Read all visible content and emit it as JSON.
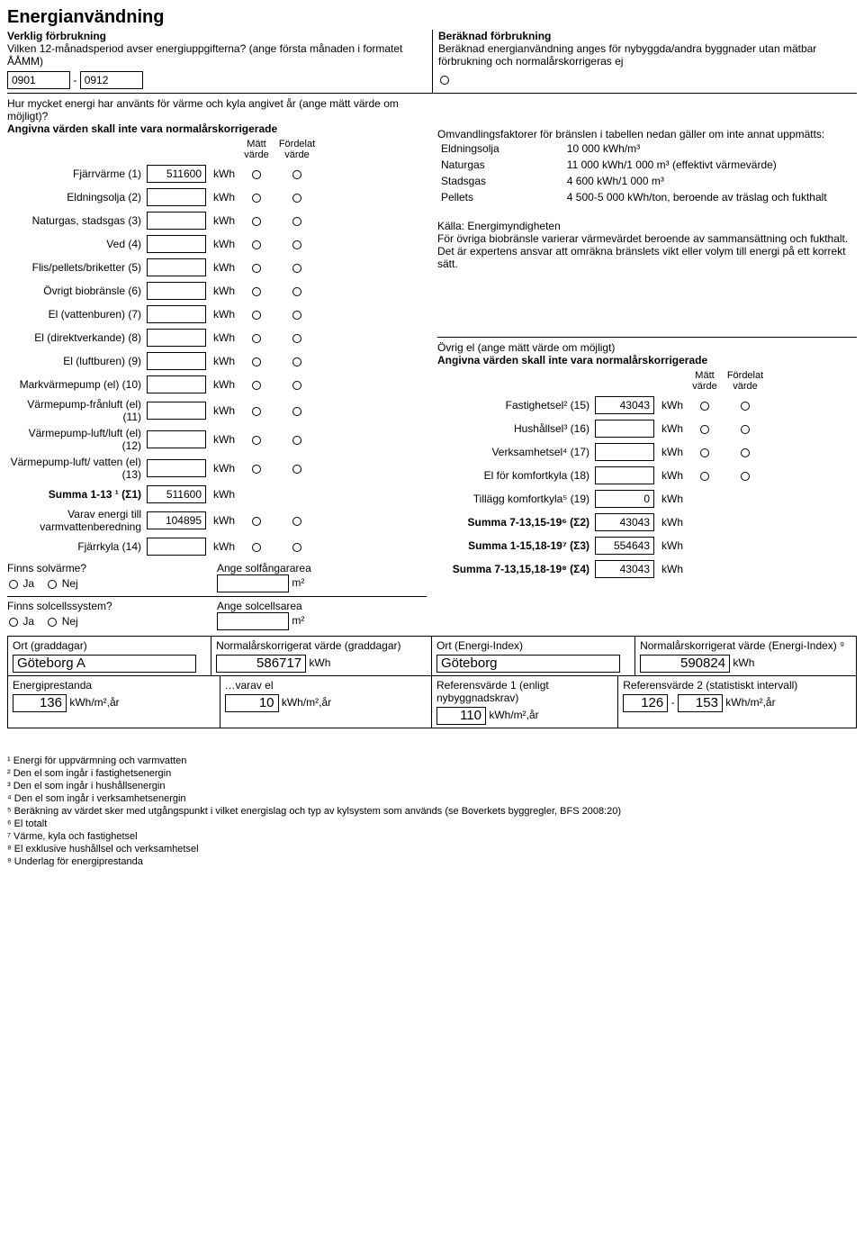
{
  "title": "Energianvändning",
  "left_header": {
    "sub1": "Verklig förbrukning",
    "sub2": "Vilken 12-månadsperiod avser energiuppgifterna? (ange första månaden i formatet ÅÅMM)",
    "period_from": "0901",
    "period_to": "0912",
    "dash": "-"
  },
  "right_header": {
    "sub1": "Beräknad förbrukning",
    "sub2": "Beräknad energianvändning anges för nybyggda/andra byggnader utan mätbar förbrukning och normalårskorrigeras ej"
  },
  "q2": "Hur mycket energi har använts för värme och kyla angivet år (ange mätt värde om möjligt)?",
  "q2b": "Angivna värden skall inte vara normalårskorrigerade",
  "col_matt": "Mätt värde",
  "col_ford": "Fördelat värde",
  "energy_rows": [
    {
      "label": "Fjärrvärme (1)",
      "value": "511600",
      "unit": "kWh"
    },
    {
      "label": "Eldningsolja (2)",
      "value": "",
      "unit": "kWh"
    },
    {
      "label": "Naturgas, stadsgas (3)",
      "value": "",
      "unit": "kWh"
    },
    {
      "label": "Ved (4)",
      "value": "",
      "unit": "kWh"
    },
    {
      "label": "Flis/pellets/briketter (5)",
      "value": "",
      "unit": "kWh"
    },
    {
      "label": "Övrigt biobränsle (6)",
      "value": "",
      "unit": "kWh"
    },
    {
      "label": "El (vattenburen) (7)",
      "value": "",
      "unit": "kWh"
    },
    {
      "label": "El (direktverkande) (8)",
      "value": "",
      "unit": "kWh"
    },
    {
      "label": "El (luftburen) (9)",
      "value": "",
      "unit": "kWh"
    },
    {
      "label": "Markvärmepump (el) (10)",
      "value": "",
      "unit": "kWh"
    },
    {
      "label": "Värmepump-frånluft (el) (11)",
      "value": "",
      "unit": "kWh"
    },
    {
      "label": "Värmepump-luft/luft (el) (12)",
      "value": "",
      "unit": "kWh"
    },
    {
      "label": "Värmepump-luft/ vatten (el) (13)",
      "value": "",
      "unit": "kWh"
    }
  ],
  "summa1": {
    "label": "Summa 1-13 ¹ (Σ1)",
    "value": "511600",
    "unit": "kWh"
  },
  "varav": {
    "label": "Varav energi till varmvattenberedning",
    "value": "104895",
    "unit": "kWh"
  },
  "fjarrkyla": {
    "label": "Fjärrkyla (14)",
    "value": "",
    "unit": "kWh"
  },
  "conv_intro1": "Omvandlingsfaktorer för bränslen i tabellen nedan gäller om inte annat uppmätts:",
  "conv": [
    {
      "k": "Eldningsolja",
      "v": "10 000 kWh/m³"
    },
    {
      "k": "Naturgas",
      "v": "11 000 kWh/1 000 m³ (effektivt värmevärde)"
    },
    {
      "k": "Stadsgas",
      "v": "4 600 kWh/1 000 m³"
    },
    {
      "k": "Pellets",
      "v": "4 500-5 000 kWh/ton, beroende av träslag och fukthalt"
    }
  ],
  "kalla": "Källa: Energimyndigheten",
  "kalla2": "För övriga biobränsle varierar värmevärdet beroende av sammansättning och fukthalt. Det är expertens ansvar att omräkna bränslets vikt eller volym till energi på ett korrekt sätt.",
  "ovrig_el_h": "Övrig el (ange mätt värde om möjligt)",
  "ovrig_el_h2": "Angivna värden skall inte vara normalårskorrigerade",
  "el_rows": [
    {
      "label": "Fastighetsel² (15)",
      "value": "43043",
      "unit": "kWh"
    },
    {
      "label": "Hushållsel³ (16)",
      "value": "",
      "unit": "kWh"
    },
    {
      "label": "Verksamhetsel⁴ (17)",
      "value": "",
      "unit": "kWh"
    },
    {
      "label": "El för komfortkyla (18)",
      "value": "",
      "unit": "kWh"
    }
  ],
  "tillagg": {
    "label": "Tillägg komfortkyla⁵ (19)",
    "value": "0",
    "unit": "kWh"
  },
  "summa2": {
    "label": "Summa 7-13,15-19⁶ (Σ2)",
    "value": "43043",
    "unit": "kWh"
  },
  "summa3": {
    "label": "Summa 1-15,18-19⁷ (Σ3)",
    "value": "554643",
    "unit": "kWh"
  },
  "summa4": {
    "label": "Summa 7-13,15,18-19⁸ (Σ4)",
    "value": "43043",
    "unit": "kWh"
  },
  "solv": {
    "q": "Finns solvärme?",
    "sub": "Ange solfångararea",
    "unit": "m²",
    "ja": "Ja",
    "nej": "Nej"
  },
  "solc": {
    "q": "Finns solcellssystem?",
    "sub": "Ange solcellsarea",
    "unit": "m²",
    "ja": "Ja",
    "nej": "Nej"
  },
  "bottom": {
    "ort_grad_lbl": "Ort (graddagar)",
    "norm_grad_lbl": "Normalårskorrigerat värde (graddagar)",
    "ort_grad": "Göteborg A",
    "norm_grad": "586717",
    "kwh": "kWh",
    "ort_ei_lbl": "Ort (Energi-Index)",
    "norm_ei_lbl": "Normalårskorrigerat värde (Energi-Index) ⁹",
    "ort_ei": "Göteborg",
    "norm_ei": "590824",
    "ep_lbl": "Energiprestanda",
    "varav_el_lbl": "…varav el",
    "ref1_lbl": "Referensvärde 1 (enligt nybyggnadskrav)",
    "ref2_lbl": "Referensvärde 2 (statistiskt intervall)",
    "ep": "136",
    "varav_el": "10",
    "ref1": "110",
    "ref2a": "126",
    "ref2b": "153",
    "dash": "-",
    "unit": "kWh/m²,år"
  },
  "footnotes": [
    "¹ Energi för uppvärmning och varmvatten",
    "² Den el som ingår i fastighetsenergin",
    "³ Den el som ingår i hushållsenergin",
    "⁴ Den el som ingår i verksamhetsenergin",
    "⁵ Beräkning av värdet sker med utgångspunkt i vilket energislag och typ av kylsystem som används (se Boverkets byggregler, BFS 2008:20)",
    "⁶ El totalt",
    "⁷ Värme, kyla och fastighetsel",
    "⁸ El exklusive hushållsel och verksamhetsel",
    "⁹ Underlag för energiprestanda"
  ]
}
